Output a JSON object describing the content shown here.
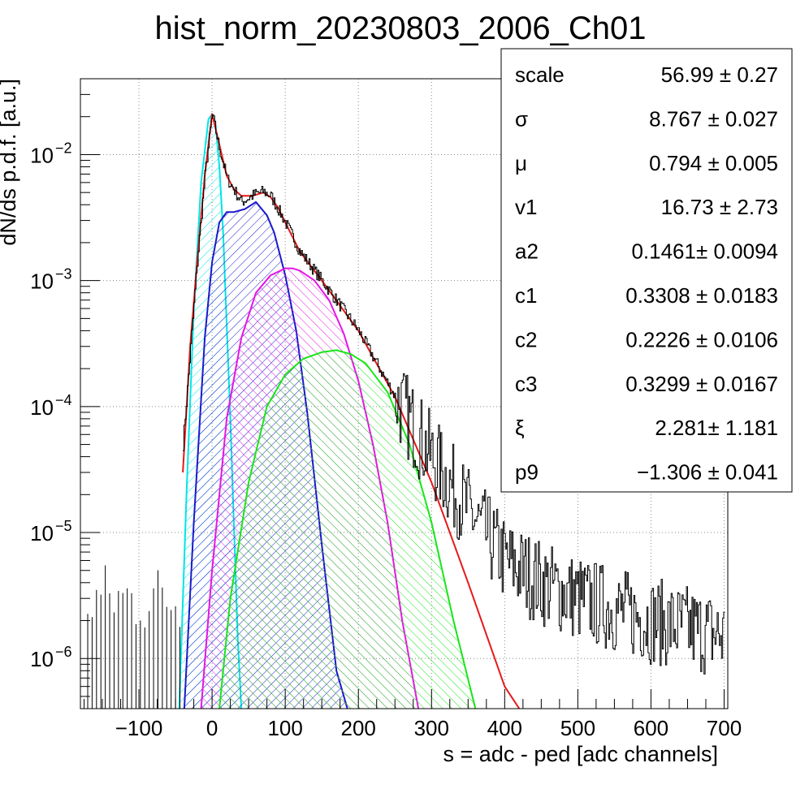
{
  "chart_data": {
    "type": "line",
    "title": "hist_norm_20230803_2006_Ch01",
    "xlabel": "s = adc - ped [adc channels]",
    "ylabel": "dN/ds p.d.f. [a.u.]",
    "xlim": [
      -180,
      705
    ],
    "ylim": [
      4e-07,
      0.04
    ],
    "yscale": "log",
    "grid": true,
    "x_ticks": [
      -100,
      0,
      100,
      200,
      300,
      400,
      500,
      600,
      700
    ],
    "x_tick_labels": [
      "−100",
      "0",
      "100",
      "200",
      "300",
      "400",
      "500",
      "600",
      "700"
    ],
    "y_ticks": [
      1e-06,
      1e-05,
      0.0001,
      0.001,
      0.01
    ],
    "y_tick_labels": [
      {
        "base": "10",
        "exp": "−6"
      },
      {
        "base": "10",
        "exp": "−5"
      },
      {
        "base": "10",
        "exp": "−4"
      },
      {
        "base": "10",
        "exp": "−3"
      },
      {
        "base": "10",
        "exp": "−2"
      }
    ],
    "histogram": {
      "color": "#000000",
      "x": [
        -40,
        -20,
        -10,
        0,
        10,
        20,
        40,
        60,
        70,
        80,
        100,
        120,
        150,
        200,
        250,
        300,
        350,
        400,
        450,
        500,
        600,
        700
      ],
      "y": [
        5e-05,
        0.0015,
        0.0068,
        0.021,
        0.011,
        0.0065,
        0.0042,
        0.0049,
        0.0051,
        0.0047,
        0.0029,
        0.0017,
        0.001,
        0.0004,
        0.00012,
        4e-05,
        1.5e-05,
        6e-06,
        4e-06,
        3e-06,
        2e-06,
        1.5e-06
      ]
    },
    "series": [
      {
        "color": "#00e5e5",
        "fill": true,
        "x": [
          -45,
          -35,
          -25,
          -15,
          -5,
          0,
          5,
          10,
          15,
          25,
          35,
          40
        ],
        "y": [
          4e-07,
          2e-05,
          0.0006,
          0.006,
          0.019,
          0.021,
          0.017,
          0.008,
          0.0025,
          8e-05,
          1.5e-06,
          4e-07
        ]
      },
      {
        "color": "#1a1acc",
        "fill": true,
        "x": [
          -38,
          -25,
          -10,
          0,
          10,
          20,
          30,
          45,
          60,
          75,
          85,
          100,
          115,
          130,
          150,
          170,
          185
        ],
        "y": [
          4e-07,
          1.2e-05,
          0.00035,
          0.0014,
          0.0029,
          0.0035,
          0.0035,
          0.0037,
          0.0042,
          0.0033,
          0.0024,
          0.0011,
          0.0004,
          9e-05,
          8e-06,
          8e-07,
          4e-07
        ]
      },
      {
        "color": "#e515e5",
        "fill": true,
        "x": [
          -15,
          0,
          20,
          40,
          60,
          80,
          100,
          110,
          120,
          140,
          160,
          180,
          200,
          220,
          240,
          260,
          282
        ],
        "y": [
          4e-07,
          5e-06,
          8e-05,
          0.00035,
          0.0008,
          0.0011,
          0.00125,
          0.00125,
          0.0012,
          0.001,
          0.0007,
          0.00038,
          0.00016,
          5e-05,
          1.2e-05,
          2e-06,
          4e-07
        ]
      },
      {
        "color": "#19e519",
        "fill": true,
        "x": [
          10,
          25,
          50,
          75,
          100,
          125,
          150,
          170,
          190,
          210,
          240,
          270,
          300,
          330,
          360
        ],
        "y": [
          4e-07,
          3e-06,
          2.5e-05,
          0.0001,
          0.00018,
          0.00024,
          0.00027,
          0.00028,
          0.00026,
          0.00022,
          0.00013,
          5e-05,
          1.2e-05,
          2e-06,
          4e-07
        ]
      },
      {
        "color": "#e51919",
        "fill": false,
        "x": [
          -40,
          -30,
          -20,
          -10,
          0,
          10,
          20,
          30,
          40,
          55,
          70,
          80,
          90,
          100,
          120,
          150,
          200,
          250,
          300,
          350,
          400,
          420
        ],
        "y": [
          3e-05,
          0.0003,
          0.0015,
          0.0068,
          0.021,
          0.012,
          0.0068,
          0.0053,
          0.0047,
          0.0047,
          0.005,
          0.0046,
          0.0038,
          0.0029,
          0.0017,
          0.001,
          0.0004,
          0.00012,
          2.5e-05,
          4e-06,
          6e-07,
          4e-07
        ]
      }
    ]
  },
  "stats": [
    {
      "name": "scale",
      "value": "56.99 ± 0.27"
    },
    {
      "name": "σ",
      "value": "8.767 ± 0.027"
    },
    {
      "name": "μ",
      "value": "0.794 ± 0.005"
    },
    {
      "name": "v1",
      "value": "16.73 ± 2.73"
    },
    {
      "name": "a2",
      "value": "0.1461± 0.0094"
    },
    {
      "name": "c1",
      "value": "0.3308 ± 0.0183"
    },
    {
      "name": "c2",
      "value": "0.2226 ± 0.0106"
    },
    {
      "name": "c3",
      "value": "0.3299 ± 0.0167"
    },
    {
      "name": "ξ",
      "value": "2.281± 1.181"
    },
    {
      "name": "p9",
      "value": "−1.306 ± 0.041"
    }
  ]
}
